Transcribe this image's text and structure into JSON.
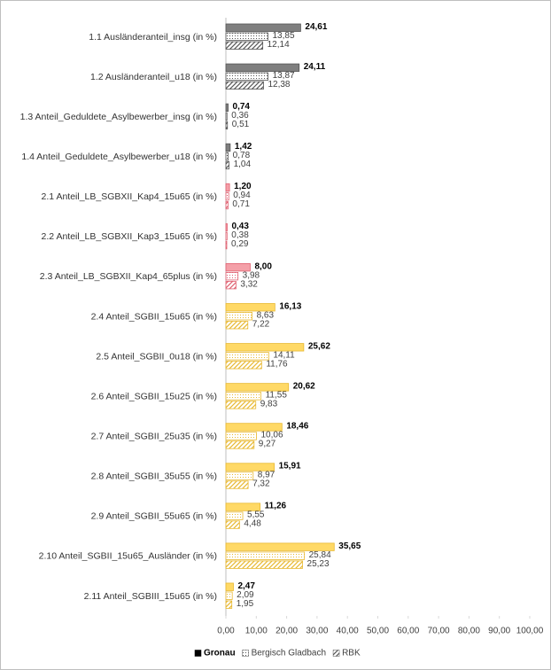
{
  "chart_data": {
    "type": "hbar",
    "categories": [
      "1.1 Ausländeranteil_insg (in %)",
      "1.2 Ausländeranteil_u18 (in %)",
      "1.3 Anteil_Geduldete_Asylbewerber_insg (in %)",
      "1.4 Anteil_Geduldete_Asylbewerber_u18 (in %)",
      "2.1 Anteil_LB_SGBXII_Kap4_15u65 (in %)",
      "2.2 Anteil_LB_SGBXII_Kap3_15u65 (in %)",
      "2.3 Anteil_LB_SGBXII_Kap4_65plus (in %)",
      "2.4 Anteil_SGBII_15u65 (in %)",
      "2.5 Anteil_SGBII_0u18 (in %)",
      "2.6 Anteil_SGBII_15u25 (in %)",
      "2.7 Anteil_SGBII_25u35 (in %)",
      "2.8 Anteil_SGBII_35u55 (in %)",
      "2.9 Anteil_SGBII_55u65 (in %)",
      "2.10 Anteil_SGBII_15u65_Ausländer (in %)",
      "2.11 Anteil_SGBIII_15u65 (in %)"
    ],
    "category_colors": [
      "#7f7f7f",
      "#7f7f7f",
      "#7f7f7f",
      "#7f7f7f",
      "#f4a0a8",
      "#f4a0a8",
      "#f4a0a8",
      "#ffd966",
      "#ffd966",
      "#ffd966",
      "#ffd966",
      "#ffd966",
      "#ffd966",
      "#ffd966",
      "#ffd966"
    ],
    "series": [
      {
        "name": "Gronau",
        "pattern": "solid",
        "values": [
          24.61,
          24.11,
          0.74,
          1.42,
          1.2,
          0.43,
          8.0,
          16.13,
          25.62,
          20.62,
          18.46,
          15.91,
          11.26,
          35.65,
          2.47
        ],
        "value_labels": [
          "24,61",
          "24,11",
          "0,74",
          "1,42",
          "1,20",
          "0,43",
          "8,00",
          "16,13",
          "25,62",
          "20,62",
          "18,46",
          "15,91",
          "11,26",
          "35,65",
          "2,47"
        ]
      },
      {
        "name": "Bergisch Gladbach",
        "pattern": "dots",
        "values": [
          13.85,
          13.87,
          0.36,
          0.78,
          0.94,
          0.38,
          3.98,
          8.63,
          14.11,
          11.55,
          10.06,
          8.97,
          5.55,
          25.84,
          2.09
        ],
        "value_labels": [
          "13,85",
          "13,87",
          "0,36",
          "0,78",
          "0,94",
          "0,38",
          "3,98",
          "8,63",
          "14,11",
          "11,55",
          "10,06",
          "8,97",
          "5,55",
          "25,84",
          "2,09"
        ]
      },
      {
        "name": "RBK",
        "pattern": "hatch",
        "values": [
          12.14,
          12.38,
          0.51,
          1.04,
          0.71,
          0.29,
          3.32,
          7.22,
          11.76,
          9.83,
          9.27,
          7.32,
          4.48,
          25.23,
          1.95
        ],
        "value_labels": [
          "12,14",
          "12,38",
          "0,51",
          "1,04",
          "0,71",
          "0,29",
          "3,32",
          "7,22",
          "11,76",
          "9,83",
          "9,27",
          "7,32",
          "4,48",
          "25,23",
          "1,95"
        ]
      }
    ],
    "xlim": [
      0,
      100
    ],
    "xticks": [
      {
        "value": 0,
        "label": "0,00"
      },
      {
        "value": 10,
        "label": "10,00"
      },
      {
        "value": 20,
        "label": "20,00"
      },
      {
        "value": 30,
        "label": "30,00"
      },
      {
        "value": 40,
        "label": "40,00"
      },
      {
        "value": 50,
        "label": "50,00"
      },
      {
        "value": 60,
        "label": "60,00"
      },
      {
        "value": 70,
        "label": "70,00"
      },
      {
        "value": 80,
        "label": "80,00"
      },
      {
        "value": 90,
        "label": "90,00"
      },
      {
        "value": 100,
        "label": "100,00"
      }
    ],
    "legend": "bottom"
  }
}
